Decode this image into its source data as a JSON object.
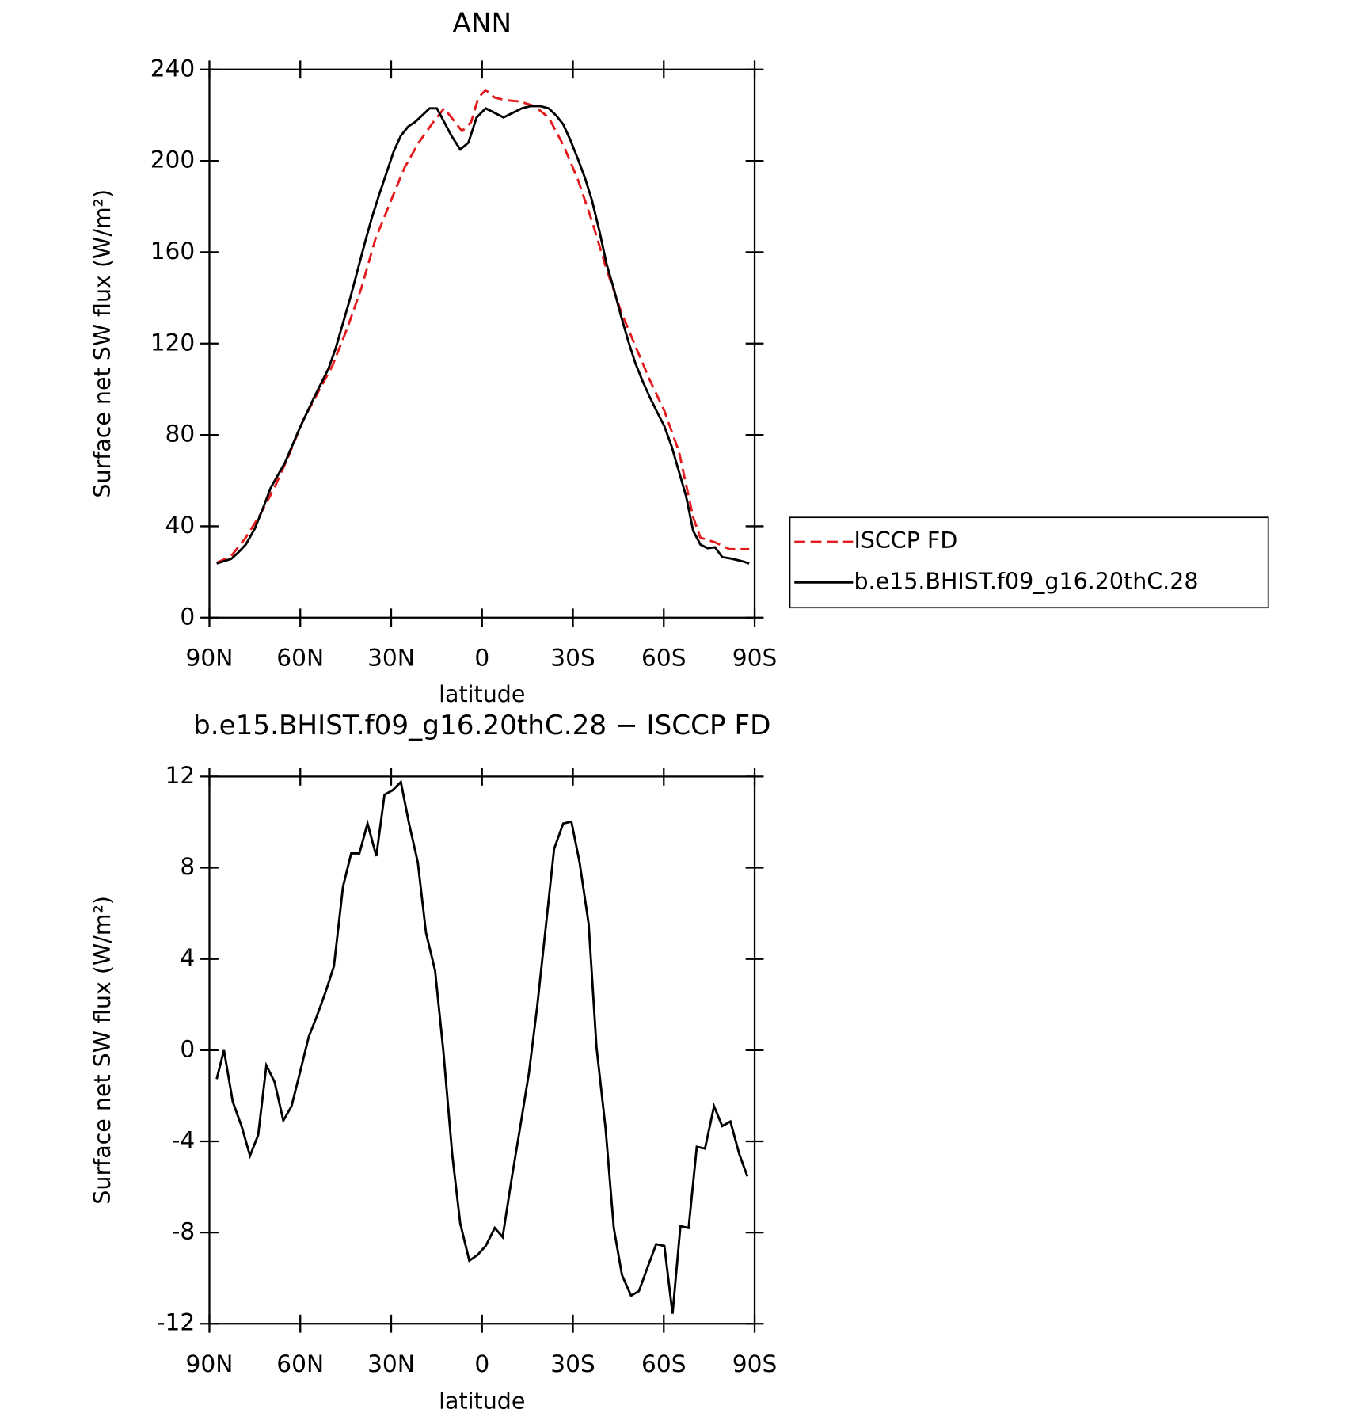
{
  "chart_data": [
    {
      "type": "line",
      "title": "ANN",
      "xlabel": "latitude",
      "ylabel": "Surface net SW flux (W/m²)",
      "xlim": [
        90,
        -90
      ],
      "xticks": [
        {
          "value": 90,
          "label": "90N"
        },
        {
          "value": 60,
          "label": "60N"
        },
        {
          "value": 30,
          "label": "30N"
        },
        0,
        {
          "value": -30,
          "label": "30S"
        },
        {
          "value": -60,
          "label": "60S"
        },
        {
          "value": -90,
          "label": "90S"
        }
      ],
      "ylim": [
        0,
        240
      ],
      "yticks": [
        0,
        40,
        80,
        120,
        160,
        200,
        240
      ],
      "legend": "outside-right",
      "series": [
        {
          "name": "ISCCP FD",
          "color": "#e41a1c",
          "dash": true,
          "x": [
            87.6,
            82.8,
            78,
            73.3,
            68.5,
            63.8,
            59,
            54.2,
            49.5,
            44.7,
            39.9,
            35.2,
            30.4,
            25.6,
            20.9,
            16.1,
            12.5,
            9.5,
            6.6,
            3.6,
            1.2,
            -1.2,
            -4.2,
            -7.7,
            -12.5,
            -17.3,
            -22,
            -26.8,
            -31.6,
            -36.3,
            -41.1,
            -45.9,
            -50.6,
            -55.4,
            -60.2,
            -65,
            -69.7,
            -72.1,
            -76.9,
            -81.6,
            -88.2
          ],
          "values": [
            24,
            27,
            35,
            45,
            57,
            71,
            86.6,
            98.5,
            110,
            126,
            144,
            165.7,
            181.5,
            197,
            208,
            217,
            223,
            218,
            213,
            217,
            227.7,
            231,
            227.7,
            226.6,
            226,
            224,
            219,
            207,
            192,
            173.6,
            152.6,
            134,
            119,
            104,
            90.5,
            72.8,
            44,
            35,
            33,
            30,
            30
          ]
        },
        {
          "name": "b.e15.BHIST.f09_g16.20thC.28",
          "color": "#000000",
          "dash": false,
          "x": [
            87.6,
            82.8,
            80.5,
            78,
            75,
            72,
            69.7,
            65,
            60.2,
            55.4,
            50.7,
            48.3,
            45.9,
            43.5,
            41.1,
            38.7,
            36.4,
            34,
            31.6,
            29.2,
            26.8,
            24.4,
            22.1,
            19.7,
            17.3,
            14.9,
            12.5,
            10.1,
            7.2,
            4.5,
            1.8,
            -1.2,
            -4.2,
            -7.1,
            -10.1,
            -13.1,
            -16.1,
            -19.1,
            -22,
            -24.4,
            -26.8,
            -29.2,
            -31.6,
            -34,
            -36.3,
            -38.7,
            -41.1,
            -43.5,
            -45.9,
            -48.3,
            -50.6,
            -53,
            -55.4,
            -57.8,
            -60.2,
            -62.6,
            -65,
            -67.4,
            -69.7,
            -72.1,
            -74.5,
            -76.9,
            -79.3,
            -81.6,
            -84,
            -86.4,
            -88.2
          ],
          "values": [
            23.7,
            25.7,
            28.5,
            32,
            39,
            49,
            57,
            68,
            83,
            96.5,
            109,
            118,
            129,
            140,
            152,
            164,
            175,
            185,
            194.5,
            204,
            211,
            215,
            217,
            220,
            223,
            223,
            217,
            211,
            205,
            208,
            219,
            223,
            221,
            219,
            221,
            223,
            224,
            224,
            223,
            220,
            216,
            209,
            201,
            192.5,
            182.7,
            169.6,
            155,
            144,
            132,
            121,
            111.5,
            103.6,
            96.5,
            90,
            83.8,
            75,
            64,
            53,
            38,
            32,
            30.4,
            30.8,
            26.5,
            26,
            25.3,
            24.5,
            23.7
          ]
        }
      ]
    },
    {
      "type": "line",
      "title": "b.e15.BHIST.f09_g16.20thC.28 − ISCCP FD",
      "xlabel": "latitude",
      "ylabel": "Surface net SW flux (W/m²)",
      "xlim": [
        90,
        -90
      ],
      "xticks": [
        {
          "value": 90,
          "label": "90N"
        },
        {
          "value": 60,
          "label": "60N"
        },
        {
          "value": 30,
          "label": "30N"
        },
        0,
        {
          "value": -30,
          "label": "30S"
        },
        {
          "value": -60,
          "label": "60S"
        },
        {
          "value": -90,
          "label": "90S"
        }
      ],
      "ylim": [
        -12,
        12
      ],
      "yticks": [
        -12,
        -8,
        -4,
        0,
        4,
        8,
        12
      ],
      "series": [
        {
          "color": "#000000",
          "dash": false,
          "x": [
            87.6,
            85.2,
            82.3,
            79.3,
            76.6,
            73.9,
            71.2,
            68.5,
            65.6,
            62.9,
            59.9,
            57.2,
            54.5,
            51.6,
            48.9,
            45.9,
            43.2,
            40.5,
            37.8,
            34.9,
            32.2,
            29.5,
            26.8,
            24.1,
            21.2,
            18.5,
            15.5,
            12.8,
            9.8,
            7.2,
            4.2,
            1.5,
            -1.2,
            -4.2,
            -6.8,
            -9.8,
            -12.5,
            -15.5,
            -18.2,
            -21.1,
            -23.8,
            -26.8,
            -29.5,
            -32.2,
            -35.2,
            -37.8,
            -40.8,
            -43.5,
            -46.2,
            -49.2,
            -51.8,
            -54.5,
            -57.5,
            -60.2,
            -62.9,
            -65.5,
            -68.2,
            -70.9,
            -73.6,
            -76.6,
            -79.3,
            -82,
            -84.9,
            -87.6
          ],
          "values": [
            -1.27,
            0,
            -2.26,
            -3.37,
            -4.63,
            -3.72,
            -0.67,
            -1.39,
            -3.09,
            -2.46,
            -0.87,
            0.59,
            1.5,
            2.57,
            3.68,
            7.17,
            8.63,
            8.63,
            9.94,
            8.51,
            11.2,
            11.4,
            11.76,
            9.94,
            8.24,
            5.15,
            3.49,
            0,
            -4.63,
            -7.6,
            -9.23,
            -8.99,
            -8.59,
            -7.8,
            -8.2,
            -5.62,
            -3.45,
            -0.99,
            1.9,
            5.47,
            8.83,
            9.94,
            10.02,
            8.24,
            5.54,
            0.12,
            -3.45,
            -7.8,
            -9.86,
            -10.77,
            -10.57,
            -9.58,
            -8.51,
            -8.59,
            -11.56,
            -7.72,
            -7.8,
            -4.24,
            -4.32,
            -2.46,
            -3.33,
            -3.13,
            -4.55,
            -5.54
          ]
        }
      ]
    }
  ]
}
